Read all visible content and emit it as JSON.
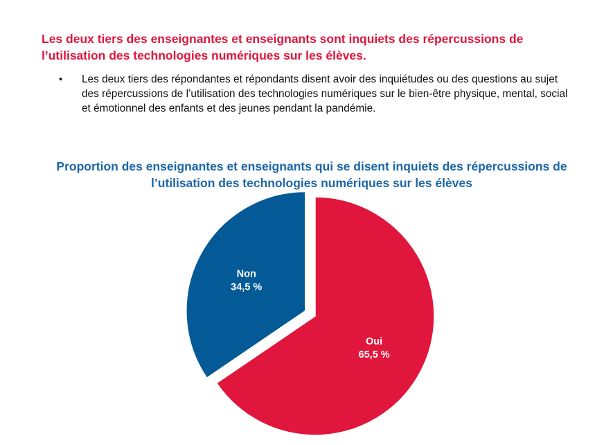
{
  "headline": "Les deux tiers des enseignantes et enseignants sont inquiets des répercussions de l’utilisation des technologies numériques sur les élèves.",
  "bullets": [
    "Les deux tiers des répondantes et répondants disent avoir des inquiétudes ou des questions au sujet des répercussions de l’utilisation des technologies numériques sur le bien-être physique, mental, social et émotionnel des enfants et des jeunes pendant la pandémie."
  ],
  "colors": {
    "headline": "#e0163d",
    "chart_title": "#1b66a6",
    "oui": "#e0163d",
    "non": "#045a96"
  },
  "chart_data": {
    "type": "pie",
    "title": "Proportion des enseignantes et enseignants qui se disent inquiets des répercussions de l’utilisation des technologies numériques sur les élèves",
    "slices": [
      {
        "label": "Oui",
        "value": 65.5,
        "display": "65,5 %",
        "color": "#e0163d",
        "exploded": false
      },
      {
        "label": "Non",
        "value": 34.5,
        "display": "34,5 %",
        "color": "#045a96",
        "exploded": true
      }
    ],
    "start": "12 o'clock",
    "direction": "clockwise",
    "legend": "none"
  }
}
